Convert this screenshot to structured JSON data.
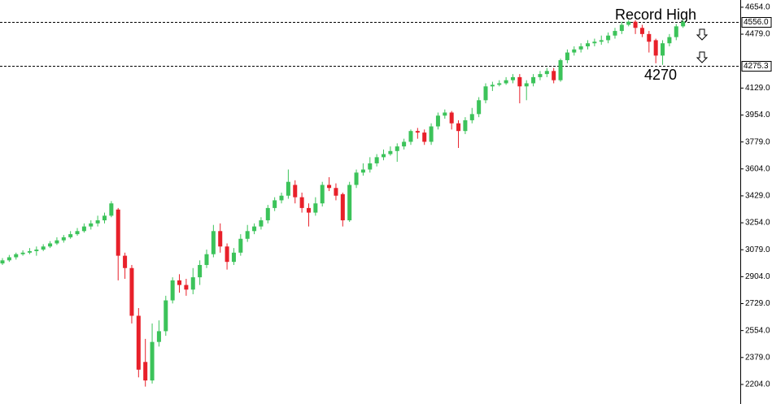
{
  "chart_data": {
    "type": "candlestick",
    "up_color": "#3cc35a",
    "down_color": "#e8202a",
    "ylim": [
      2077,
      4701
    ],
    "yticks": [
      {
        "value": 4654,
        "label": "4654.0"
      },
      {
        "value": 4479,
        "label": "4479.0"
      },
      {
        "value": 4129,
        "label": "4129.0"
      },
      {
        "value": 3954,
        "label": "3954.0"
      },
      {
        "value": 3779,
        "label": "3779.0"
      },
      {
        "value": 3604,
        "label": "3604.0"
      },
      {
        "value": 3429,
        "label": "3429.0"
      },
      {
        "value": 3254,
        "label": "3254.0"
      },
      {
        "value": 3079,
        "label": "3079.0"
      },
      {
        "value": 2904,
        "label": "2904.0"
      },
      {
        "value": 2729,
        "label": "2729.0"
      },
      {
        "value": 2554,
        "label": "2554.0"
      },
      {
        "value": 2379,
        "label": "2379.0"
      },
      {
        "value": 2204,
        "label": "2204.0"
      }
    ],
    "price_lines": [
      {
        "value": 4556,
        "label": "4556.0"
      },
      {
        "value": 4275.3,
        "label": "4275.3"
      }
    ],
    "annotations": [
      "Record High",
      "4270"
    ],
    "candles": [
      {
        "open": 2990,
        "high": 3025,
        "low": 2980,
        "close": 3010
      },
      {
        "open": 3010,
        "high": 3045,
        "low": 3000,
        "close": 3030
      },
      {
        "open": 3030,
        "high": 3060,
        "low": 3015,
        "close": 3050
      },
      {
        "open": 3050,
        "high": 3075,
        "low": 3040,
        "close": 3060
      },
      {
        "open": 3060,
        "high": 3090,
        "low": 3050,
        "close": 3070
      },
      {
        "open": 3070,
        "high": 3100,
        "low": 3040,
        "close": 3080
      },
      {
        "open": 3080,
        "high": 3115,
        "low": 3070,
        "close": 3100
      },
      {
        "open": 3100,
        "high": 3135,
        "low": 3090,
        "close": 3120
      },
      {
        "open": 3120,
        "high": 3160,
        "low": 3110,
        "close": 3140
      },
      {
        "open": 3140,
        "high": 3175,
        "low": 3125,
        "close": 3160
      },
      {
        "open": 3160,
        "high": 3200,
        "low": 3150,
        "close": 3180
      },
      {
        "open": 3180,
        "high": 3220,
        "low": 3170,
        "close": 3200
      },
      {
        "open": 3200,
        "high": 3250,
        "low": 3190,
        "close": 3230
      },
      {
        "open": 3230,
        "high": 3270,
        "low": 3210,
        "close": 3250
      },
      {
        "open": 3250,
        "high": 3300,
        "low": 3230,
        "close": 3270
      },
      {
        "open": 3270,
        "high": 3320,
        "low": 3250,
        "close": 3300
      },
      {
        "open": 3300,
        "high": 3395,
        "low": 3290,
        "close": 3380
      },
      {
        "open": 3340,
        "high": 3350,
        "low": 2880,
        "close": 3040
      },
      {
        "open": 3040,
        "high": 3060,
        "low": 2890,
        "close": 2960
      },
      {
        "open": 2960,
        "high": 2980,
        "low": 2600,
        "close": 2650
      },
      {
        "open": 2650,
        "high": 2700,
        "low": 2250,
        "close": 2300
      },
      {
        "open": 2350,
        "high": 2500,
        "low": 2190,
        "close": 2230
      },
      {
        "open": 2230,
        "high": 2600,
        "low": 2210,
        "close": 2480
      },
      {
        "open": 2480,
        "high": 2620,
        "low": 2450,
        "close": 2550
      },
      {
        "open": 2550,
        "high": 2780,
        "low": 2520,
        "close": 2750
      },
      {
        "open": 2750,
        "high": 2900,
        "low": 2730,
        "close": 2880
      },
      {
        "open": 2880,
        "high": 2920,
        "low": 2800,
        "close": 2850
      },
      {
        "open": 2850,
        "high": 2890,
        "low": 2780,
        "close": 2820
      },
      {
        "open": 2820,
        "high": 2960,
        "low": 2790,
        "close": 2900
      },
      {
        "open": 2900,
        "high": 3010,
        "low": 2850,
        "close": 2980
      },
      {
        "open": 2980,
        "high": 3080,
        "low": 2960,
        "close": 3050
      },
      {
        "open": 3050,
        "high": 3240,
        "low": 3030,
        "close": 3200
      },
      {
        "open": 3200,
        "high": 3250,
        "low": 3060,
        "close": 3100
      },
      {
        "open": 3100,
        "high": 3120,
        "low": 2950,
        "close": 3000
      },
      {
        "open": 3000,
        "high": 3090,
        "low": 2980,
        "close": 3060
      },
      {
        "open": 3060,
        "high": 3180,
        "low": 3040,
        "close": 3150
      },
      {
        "open": 3150,
        "high": 3240,
        "low": 3130,
        "close": 3200
      },
      {
        "open": 3200,
        "high": 3250,
        "low": 3180,
        "close": 3230
      },
      {
        "open": 3230,
        "high": 3290,
        "low": 3210,
        "close": 3270
      },
      {
        "open": 3270,
        "high": 3370,
        "low": 3250,
        "close": 3350
      },
      {
        "open": 3350,
        "high": 3420,
        "low": 3330,
        "close": 3400
      },
      {
        "open": 3400,
        "high": 3450,
        "low": 3380,
        "close": 3430
      },
      {
        "open": 3430,
        "high": 3600,
        "low": 3410,
        "close": 3520
      },
      {
        "open": 3500,
        "high": 3530,
        "low": 3380,
        "close": 3420
      },
      {
        "open": 3420,
        "high": 3450,
        "low": 3320,
        "close": 3350
      },
      {
        "open": 3350,
        "high": 3380,
        "low": 3230,
        "close": 3320
      },
      {
        "open": 3320,
        "high": 3420,
        "low": 3300,
        "close": 3380
      },
      {
        "open": 3380,
        "high": 3520,
        "low": 3360,
        "close": 3500
      },
      {
        "open": 3500,
        "high": 3550,
        "low": 3460,
        "close": 3480
      },
      {
        "open": 3480,
        "high": 3510,
        "low": 3400,
        "close": 3430
      },
      {
        "open": 3440,
        "high": 3450,
        "low": 3230,
        "close": 3270
      },
      {
        "open": 3270,
        "high": 3520,
        "low": 3260,
        "close": 3500
      },
      {
        "open": 3500,
        "high": 3600,
        "low": 3480,
        "close": 3580
      },
      {
        "open": 3580,
        "high": 3640,
        "low": 3560,
        "close": 3600
      },
      {
        "open": 3600,
        "high": 3680,
        "low": 3580,
        "close": 3640
      },
      {
        "open": 3640,
        "high": 3700,
        "low": 3620,
        "close": 3680
      },
      {
        "open": 3680,
        "high": 3730,
        "low": 3660,
        "close": 3700
      },
      {
        "open": 3700,
        "high": 3750,
        "low": 3690,
        "close": 3720
      },
      {
        "open": 3720,
        "high": 3770,
        "low": 3650,
        "close": 3750
      },
      {
        "open": 3750,
        "high": 3800,
        "low": 3730,
        "close": 3780
      },
      {
        "open": 3780,
        "high": 3860,
        "low": 3760,
        "close": 3850
      },
      {
        "open": 3850,
        "high": 3870,
        "low": 3800,
        "close": 3840
      },
      {
        "open": 3840,
        "high": 3860,
        "low": 3760,
        "close": 3780
      },
      {
        "open": 3780,
        "high": 3900,
        "low": 3760,
        "close": 3880
      },
      {
        "open": 3880,
        "high": 3970,
        "low": 3860,
        "close": 3950
      },
      {
        "open": 3950,
        "high": 3990,
        "low": 3930,
        "close": 3970
      },
      {
        "open": 3970,
        "high": 3980,
        "low": 3860,
        "close": 3900
      },
      {
        "open": 3900,
        "high": 3920,
        "low": 3740,
        "close": 3850
      },
      {
        "open": 3850,
        "high": 3940,
        "low": 3830,
        "close": 3920
      },
      {
        "open": 3920,
        "high": 4000,
        "low": 3900,
        "close": 3960
      },
      {
        "open": 3960,
        "high": 4070,
        "low": 3940,
        "close": 4050
      },
      {
        "open": 4050,
        "high": 4160,
        "low": 4030,
        "close": 4140
      },
      {
        "open": 4140,
        "high": 4170,
        "low": 4110,
        "close": 4150
      },
      {
        "open": 4150,
        "high": 4180,
        "low": 4140,
        "close": 4160
      },
      {
        "open": 4160,
        "high": 4200,
        "low": 4150,
        "close": 4180
      },
      {
        "open": 4180,
        "high": 4220,
        "low": 4160,
        "close": 4200
      },
      {
        "open": 4200,
        "high": 4220,
        "low": 4030,
        "close": 4140
      },
      {
        "open": 4140,
        "high": 4180,
        "low": 4050,
        "close": 4160
      },
      {
        "open": 4160,
        "high": 4220,
        "low": 4140,
        "close": 4200
      },
      {
        "open": 4200,
        "high": 4240,
        "low": 4180,
        "close": 4220
      },
      {
        "open": 4220,
        "high": 4260,
        "low": 4200,
        "close": 4240
      },
      {
        "open": 4240,
        "high": 4260,
        "low": 4160,
        "close": 4180
      },
      {
        "open": 4180,
        "high": 4320,
        "low": 4170,
        "close": 4310
      },
      {
        "open": 4310,
        "high": 4380,
        "low": 4290,
        "close": 4360
      },
      {
        "open": 4360,
        "high": 4400,
        "low": 4340,
        "close": 4380
      },
      {
        "open": 4380,
        "high": 4420,
        "low": 4360,
        "close": 4400
      },
      {
        "open": 4400,
        "high": 4440,
        "low": 4380,
        "close": 4420
      },
      {
        "open": 4420,
        "high": 4450,
        "low": 4400,
        "close": 4430
      },
      {
        "open": 4430,
        "high": 4470,
        "low": 4410,
        "close": 4440
      },
      {
        "open": 4440,
        "high": 4490,
        "low": 4420,
        "close": 4470
      },
      {
        "open": 4470,
        "high": 4520,
        "low": 4450,
        "close": 4500
      },
      {
        "open": 4500,
        "high": 4560,
        "low": 4480,
        "close": 4540
      },
      {
        "open": 4540,
        "high": 4570,
        "low": 4530,
        "close": 4560
      },
      {
        "open": 4560,
        "high": 4570,
        "low": 4480,
        "close": 4520
      },
      {
        "open": 4520,
        "high": 4540,
        "low": 4460,
        "close": 4480
      },
      {
        "open": 4480,
        "high": 4500,
        "low": 4360,
        "close": 4430
      },
      {
        "open": 4440,
        "high": 4450,
        "low": 4290,
        "close": 4340
      },
      {
        "open": 4340,
        "high": 4440,
        "low": 4280,
        "close": 4420
      },
      {
        "open": 4420,
        "high": 4480,
        "low": 4400,
        "close": 4460
      },
      {
        "open": 4460,
        "high": 4545,
        "low": 4440,
        "close": 4530
      },
      {
        "open": 4530,
        "high": 4575,
        "low": 4520,
        "close": 4560
      }
    ]
  }
}
